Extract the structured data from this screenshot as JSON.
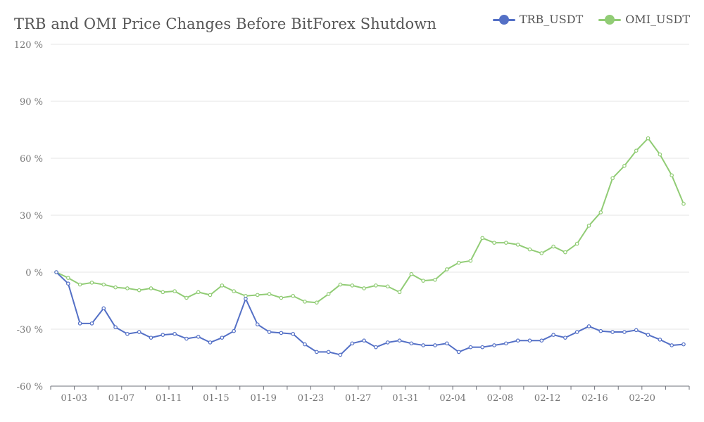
{
  "chart_data": {
    "type": "line",
    "title": "TRB and OMI Price Changes Before BitForex Shutdown",
    "xlabel": "",
    "ylabel": "",
    "ylim": [
      -60,
      120
    ],
    "y_ticks": [
      -60,
      -30,
      0,
      30,
      60,
      90,
      120
    ],
    "y_tick_labels": [
      "-60 %",
      "-30 %",
      "0 %",
      "30 %",
      "60 %",
      "90 %",
      "120 %"
    ],
    "x_tick_labels": [
      "01-03",
      "01-07",
      "01-11",
      "01-15",
      "01-19",
      "01-23",
      "01-27",
      "01-31",
      "02-04",
      "02-08",
      "02-12",
      "02-16",
      "02-20"
    ],
    "legend_position": "top-right",
    "grid": true,
    "series": [
      {
        "name": "TRB_USDT",
        "color": "#5470c6",
        "values": [
          0,
          -6,
          -27,
          -27,
          -19,
          -29,
          -32.5,
          -31.5,
          -34.5,
          -33,
          -32.5,
          -35,
          -34,
          -37,
          -34.5,
          -31,
          -14,
          -27.5,
          -31.5,
          -32,
          -32.5,
          -38,
          -42,
          -42,
          -43.5,
          -37.5,
          -36,
          -39.5,
          -37,
          -36,
          -37.5,
          -38.5,
          -38.5,
          -37.5,
          -42,
          -39.5,
          -39.5,
          -38.5,
          -37.5,
          -36,
          -36,
          -36,
          -33,
          -34.5,
          -31.5,
          -28.5,
          -31,
          -31.5,
          -31.5,
          -30.5,
          -33,
          -35.5,
          -38.5,
          -38
        ]
      },
      {
        "name": "OMI_USDT",
        "color": "#91cc75",
        "values": [
          0,
          -3,
          -6.5,
          -5.5,
          -6.5,
          -8,
          -8.5,
          -9.5,
          -8.5,
          -10.5,
          -10,
          -13.5,
          -10.5,
          -12,
          -7,
          -10,
          -12.5,
          -12,
          -11.5,
          -13.5,
          -12.5,
          -15.5,
          -16,
          -11.5,
          -6.5,
          -7,
          -8.5,
          -7,
          -7.5,
          -10.5,
          -1,
          -4.5,
          -4,
          1.5,
          5,
          6,
          18,
          15.5,
          15.5,
          14.5,
          12,
          10,
          13.5,
          10.5,
          15,
          24.5,
          31.5,
          49.5,
          56,
          64,
          70.5,
          62,
          51,
          36
        ]
      }
    ]
  }
}
